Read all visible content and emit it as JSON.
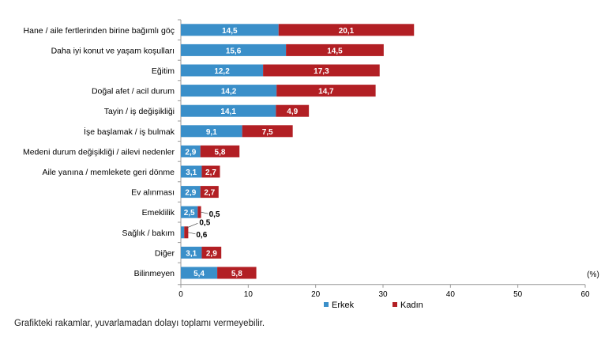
{
  "chart_data": {
    "type": "bar",
    "orientation": "horizontal",
    "stacked": true,
    "categories": [
      "Hane / aile fertlerinden birine bağımlı göç",
      "Daha iyi konut ve yaşam koşulları",
      "Eğitim",
      "Doğal afet / acil durum",
      "Tayin / iş değişikliği",
      "İşe başlamak / iş bulmak",
      "Medeni durum değişikliği / ailevi nedenler",
      "Aile yanına / memlekete geri dönme",
      "Ev alınması",
      "Emeklilik",
      "Sağlık / bakım",
      "Diğer",
      "Bilinmeyen"
    ],
    "series": [
      {
        "name": "Erkek",
        "color": "#3a8fc9",
        "values": [
          14.5,
          15.6,
          12.2,
          14.2,
          14.1,
          9.1,
          2.9,
          3.1,
          2.9,
          2.5,
          0.5,
          3.1,
          5.4
        ],
        "labels": [
          "14,5",
          "15,6",
          "12,2",
          "14,2",
          "14,1",
          "9,1",
          "2,9",
          "3,1",
          "2,9",
          "2,5",
          "0,5",
          "3,1",
          "5,4"
        ]
      },
      {
        "name": "Kadın",
        "color": "#b21f24",
        "values": [
          20.1,
          14.5,
          17.3,
          14.7,
          4.9,
          7.5,
          5.8,
          2.7,
          2.7,
          0.5,
          0.6,
          2.9,
          5.8
        ],
        "labels": [
          "20,1",
          "14,5",
          "17,3",
          "14,7",
          "4,9",
          "7,5",
          "5,8",
          "2,7",
          "2,7",
          "0,5",
          "0,6",
          "2,9",
          "5,8"
        ]
      }
    ],
    "xlim": [
      0,
      60
    ],
    "xticks": [
      "0",
      "10",
      "20",
      "30",
      "40",
      "50",
      "60"
    ],
    "xunit": "(%)",
    "legend_position": "bottom",
    "grid": false
  },
  "footnote": "Grafikteki rakamlar, yuvarlamadan dolayı toplamı vermeyebilir."
}
